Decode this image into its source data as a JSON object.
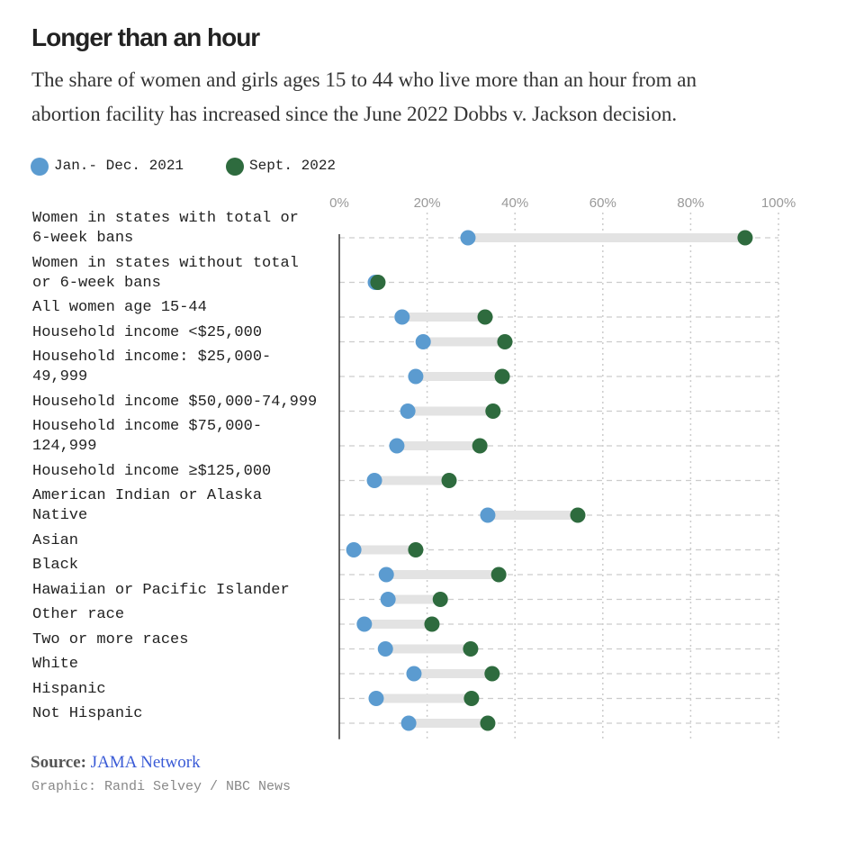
{
  "chart_data": {
    "type": "dot",
    "title": "Longer than an hour",
    "subtitle": "The share of women and girls ages 15 to 44 who live more than an hour from an abortion facility has increased since the June 2022 Dobbs v. Jackson decision.",
    "categories": [
      "Women in states with total or 6-week bans",
      "Women in states without total or 6-week bans",
      "All women age 15-44",
      "Household income <$25,000",
      "Household income: $25,000-49,999",
      "Household income $50,000-74,999",
      "Household income $75,000-124,999",
      "Household income ≥$125,000",
      "American Indian or Alaska Native",
      "Asian",
      "Black",
      "Hawaiian or Pacific Islander",
      "Other race",
      "Two or more races",
      "White",
      "Hispanic",
      "Not Hispanic"
    ],
    "series": [
      {
        "name": "Jan.- Dec. 2021",
        "color": "#5b9bd0",
        "values": [
          29.3,
          8.2,
          14.3,
          19.1,
          17.4,
          15.6,
          13.1,
          8.0,
          33.8,
          3.3,
          10.7,
          11.1,
          5.7,
          10.5,
          17.0,
          8.4,
          15.8
        ]
      },
      {
        "name": "Sept. 2022",
        "color": "#2e6b3e",
        "values": [
          92.4,
          8.8,
          33.2,
          37.7,
          37.1,
          35.0,
          32.0,
          25.0,
          54.3,
          17.4,
          36.3,
          23.0,
          21.1,
          29.9,
          34.8,
          30.1,
          33.8
        ]
      }
    ],
    "xlim": [
      0,
      100
    ],
    "xticks": [
      {
        "value": 0,
        "label": "0%"
      },
      {
        "value": 20,
        "label": "20%"
      },
      {
        "value": 40,
        "label": "40%"
      },
      {
        "value": 60,
        "label": "60%"
      },
      {
        "value": 80,
        "label": "80%"
      },
      {
        "value": 100,
        "label": "100%"
      }
    ],
    "grid": true,
    "source_label": "Source:",
    "source": "JAMA Network",
    "credit": "Graphic: Randi Selvey / NBC News"
  }
}
